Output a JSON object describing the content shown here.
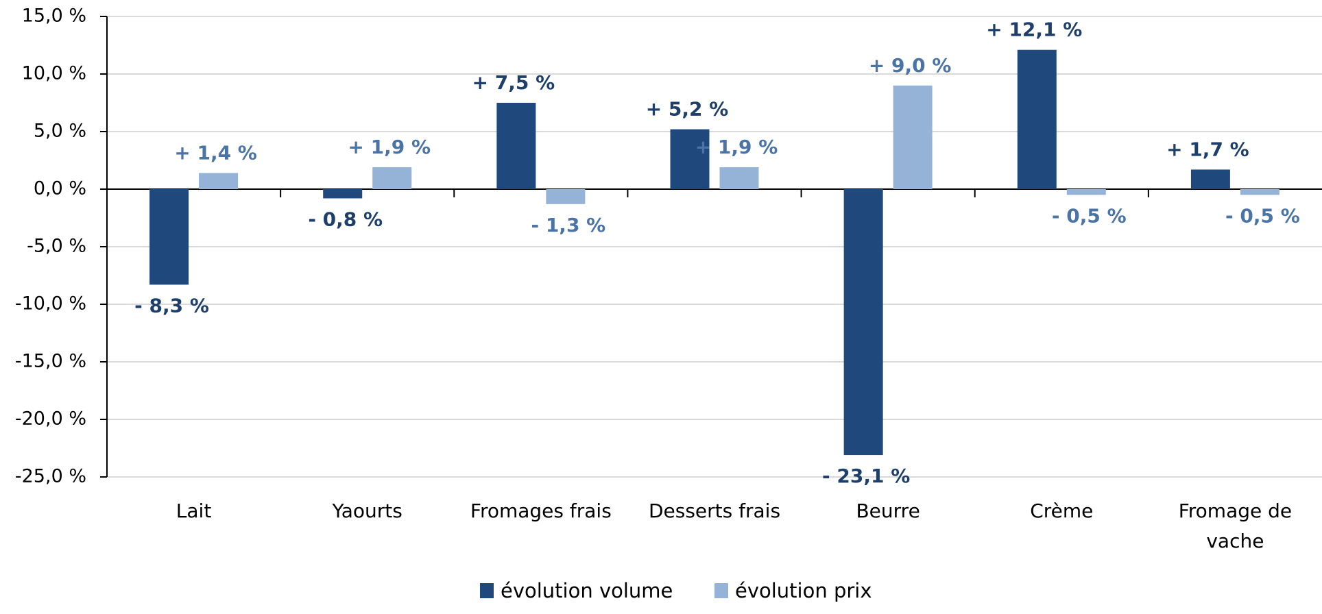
{
  "chart_data": {
    "type": "bar",
    "categories": [
      "Lait",
      "Yaourts",
      "Fromages frais",
      "Desserts frais",
      "Beurre",
      "Crème",
      "Fromage de\nvache"
    ],
    "series": [
      {
        "name": "évolution volume",
        "color": "#1f497d",
        "values": [
          -8.3,
          -0.8,
          7.5,
          5.2,
          -23.1,
          12.1,
          1.7
        ],
        "value_labels": [
          "- 8,3 %",
          "- 0,8 %",
          "+ 7,5 %",
          "+ 5,2 %",
          "- 23,1 %",
          "+ 12,1 %",
          "+ 1,7 %"
        ]
      },
      {
        "name": "évolution prix",
        "color": "#95b3d7",
        "values": [
          1.4,
          1.9,
          -1.3,
          1.9,
          9.0,
          -0.5,
          -0.5
        ],
        "value_labels": [
          "+ 1,4 %",
          "+ 1,9 %",
          "- 1,3 %",
          "+ 1,9 %",
          "+ 9,0 %",
          "- 0,5 %",
          "- 0,5 %"
        ]
      }
    ],
    "ylim": [
      -25,
      15
    ],
    "yticks": [
      {
        "value": -25,
        "label": "-25,0 %"
      },
      {
        "value": -20,
        "label": "-20,0 %"
      },
      {
        "value": -15,
        "label": "-15,0 %"
      },
      {
        "value": -10,
        "label": "-10,0 %"
      },
      {
        "value": -5,
        "label": "-5,0 %"
      },
      {
        "value": 0,
        "label": "0,0 %"
      },
      {
        "value": 5,
        "label": "5,0 %"
      },
      {
        "value": 10,
        "label": "10,0 %"
      },
      {
        "value": 15,
        "label": "15,0 %"
      }
    ],
    "grid": true,
    "legend": "bottom"
  }
}
